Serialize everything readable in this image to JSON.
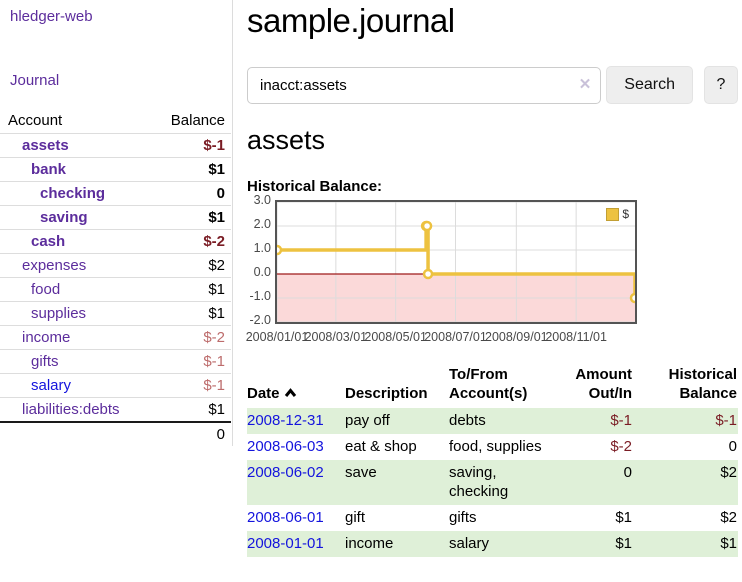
{
  "brand": "hledger-web",
  "nav": {
    "journal_label": "Journal"
  },
  "sidebar": {
    "header": {
      "account": "Account",
      "balance": "Balance"
    },
    "accounts": [
      {
        "name": "assets",
        "balance": "$-1"
      },
      {
        "name": "bank",
        "balance": "$1"
      },
      {
        "name": "checking",
        "balance": "0"
      },
      {
        "name": "saving",
        "balance": "$1"
      },
      {
        "name": "cash",
        "balance": "$-2"
      },
      {
        "name": "expenses",
        "balance": "$2"
      },
      {
        "name": "food",
        "balance": "$1"
      },
      {
        "name": "supplies",
        "balance": "$1"
      },
      {
        "name": "income",
        "balance": "$-2"
      },
      {
        "name": "gifts",
        "balance": "$-1"
      },
      {
        "name": "salary",
        "balance": "$-1"
      },
      {
        "name": "liabilities:debts",
        "balance": "$1"
      }
    ],
    "total": "0"
  },
  "header": {
    "title": "sample.journal"
  },
  "search": {
    "value": "inacct:assets",
    "clear_glyph": "✕",
    "button_label": "Search",
    "help_label": "?"
  },
  "account_page": {
    "heading": "assets",
    "chart_label": "Historical Balance:"
  },
  "chart_data": {
    "type": "line",
    "step": true,
    "title": "Historical Balance:",
    "x_start": "2008/01/01",
    "x_end": "2008/12/31",
    "x_ticks": [
      "2008/01/01",
      "2008/03/01",
      "2008/05/01",
      "2008/07/01",
      "2008/09/01",
      "2008/11/01"
    ],
    "y_ticks": [
      "3.0",
      "2.0",
      "1.0",
      "0.0",
      "-1.0",
      "-2.0"
    ],
    "ylim": [
      -2,
      3
    ],
    "legend": [
      {
        "label": "$",
        "color": "#EDC240"
      }
    ],
    "series": [
      {
        "name": "$",
        "points": [
          {
            "x": "2008/01/01",
            "y": 1
          },
          {
            "x": "2008/06/01",
            "y": 2
          },
          {
            "x": "2008/06/02",
            "y": 2
          },
          {
            "x": "2008/06/03",
            "y": 0
          },
          {
            "x": "2008/12/31",
            "y": -1
          }
        ]
      }
    ],
    "colors": {
      "line": "#EDC240",
      "negative_fill": "#fbd9d9",
      "zero_line": "#9e1a1a",
      "grid": "#dcdcdc",
      "border": "#545454",
      "tick_text": "#494949"
    }
  },
  "journal": {
    "columns": {
      "date": "Date",
      "description": "Description",
      "tofrom_line1": "To/From",
      "tofrom_line2": "Account(s)",
      "amount_line1": "Amount",
      "amount_line2": "Out/In",
      "balance_line1": "Historical",
      "balance_line2": "Balance"
    },
    "rows": [
      {
        "date": "2008-12-31",
        "description": "pay off",
        "accounts": "debts",
        "amount": "$-1",
        "balance": "$-1"
      },
      {
        "date": "2008-06-03",
        "description": "eat & shop",
        "accounts": "food, supplies",
        "amount": "$-2",
        "balance": "0"
      },
      {
        "date": "2008-06-02",
        "description": "save",
        "accounts": "saving, checking",
        "amount": "0",
        "balance": "$2"
      },
      {
        "date": "2008-06-01",
        "description": "gift",
        "accounts": "gifts",
        "amount": "$1",
        "balance": "$2"
      },
      {
        "date": "2008-01-01",
        "description": "income",
        "accounts": "salary",
        "amount": "$1",
        "balance": "$1"
      }
    ]
  }
}
